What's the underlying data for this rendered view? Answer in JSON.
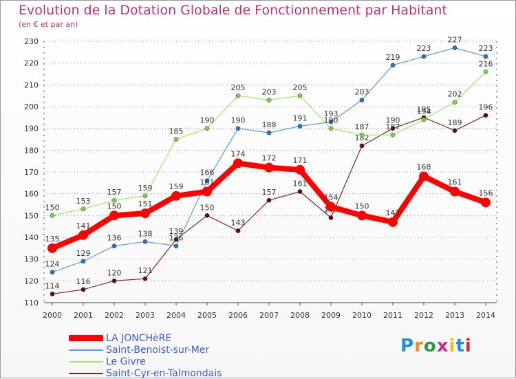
{
  "title": "Evolution de la Dotation Globale de Fonctionnement par Habitant",
  "subtitle": "(en € et par an)",
  "logo": {
    "text": "Proxiti",
    "colors": [
      "#1e90d6",
      "#f08a1c",
      "#2a9e3c",
      "#d62a8a",
      "#f2c012",
      "#1e90d6",
      "#d62a2a"
    ]
  },
  "chart_data": {
    "type": "line",
    "title": "Evolution de la Dotation Globale de Fonctionnement par Habitant",
    "subtitle": "(en € et par an)",
    "xlabel": "",
    "ylabel": "",
    "categories": [
      "2000",
      "2001",
      "2002",
      "2003",
      "2004",
      "2005",
      "2006",
      "2007",
      "2008",
      "2009",
      "2010",
      "2011",
      "2012",
      "2013",
      "2014"
    ],
    "ylim": [
      110,
      230
    ],
    "yticks": [
      110,
      120,
      130,
      140,
      150,
      160,
      170,
      180,
      190,
      200,
      210,
      220,
      230
    ],
    "grid": "horizontal dotted",
    "legend_position": "bottom-left",
    "series": [
      {
        "name": "Saint-Cyr-en-Talmondais",
        "color": "#7a2626",
        "marker": "#5a1010",
        "width": 1.2,
        "values": [
          114,
          116,
          120,
          121,
          139,
          150,
          143,
          157,
          161,
          149,
          182,
          190,
          195,
          189,
          196
        ],
        "labels": [
          "114",
          "116",
          "120",
          "121",
          "139",
          "150",
          "143",
          "157",
          "161",
          "149",
          "182",
          "190",
          "195",
          "189",
          "196"
        ]
      },
      {
        "name": "Saint-Benoist-sur-Mer",
        "color": "#5b9bd5",
        "marker": "#2d72b8",
        "width": 1.2,
        "values": [
          124,
          129,
          136,
          138,
          136,
          166,
          190,
          188,
          191,
          193,
          203,
          219,
          223,
          227,
          223
        ],
        "labels": [
          "124",
          "129",
          "136",
          "138",
          "136",
          "166",
          "190",
          "188",
          "191",
          "193",
          "203",
          "219",
          "223",
          "227",
          "223"
        ]
      },
      {
        "name": "Le Givre",
        "color": "#9ee86a",
        "marker": "#7acd45",
        "width": 1.2,
        "values": [
          150,
          153,
          157,
          159,
          185,
          190,
          205,
          203,
          205,
          190,
          187,
          187,
          194,
          202,
          216
        ],
        "labels": [
          "150",
          "153",
          "157",
          "159",
          "185",
          "190",
          "205",
          "203",
          "205",
          "190",
          "187",
          "187",
          "194",
          "202",
          "216"
        ]
      },
      {
        "name": "LA JONCHèRE",
        "color": "#ff0000",
        "marker": "#ff0000",
        "width": 8,
        "values": [
          135,
          141,
          150,
          151,
          159,
          161,
          174,
          172,
          171,
          154,
          150,
          147,
          168,
          161,
          156
        ],
        "labels": [
          "135",
          "141",
          "150",
          "151",
          "159",
          "161",
          "174",
          "172",
          "171",
          "154",
          "150",
          "147",
          "168",
          "161",
          "156"
        ]
      }
    ],
    "legend_order": [
      "LA JONCHèRE",
      "Saint-Benoist-sur-Mer",
      "Le Givre",
      "Saint-Cyr-en-Talmondais"
    ]
  }
}
